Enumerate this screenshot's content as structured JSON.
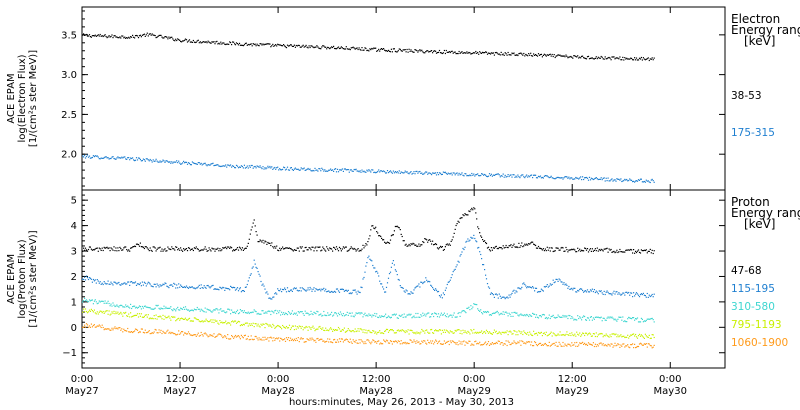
{
  "chart_data": {
    "type": "scatter",
    "xlabel": "hours:minutes, May 26, 2013 - May 30, 2013",
    "x_ticks": [
      {
        "hours": 0,
        "line1": "0:00",
        "line2": "May27"
      },
      {
        "hours": 12,
        "line1": "12:00",
        "line2": "May27"
      },
      {
        "hours": 24,
        "line1": "0:00",
        "line2": "May28"
      },
      {
        "hours": 36,
        "line1": "12:00",
        "line2": "May28"
      },
      {
        "hours": 48,
        "line1": "0:00",
        "line2": "May29"
      },
      {
        "hours": 60,
        "line1": "12:00",
        "line2": "May29"
      },
      {
        "hours": 72,
        "line1": "0:00",
        "line2": "May30"
      }
    ],
    "xlim": [
      0,
      78.7
    ],
    "panels": [
      {
        "id": "electron",
        "ylabel": [
          "ACE EPAM",
          "log(Electron Flux)",
          "[1/(cm²s ster MeV)]"
        ],
        "ylim": [
          1.55,
          3.85
        ],
        "yticks": [
          2.0,
          2.5,
          3.0,
          3.5
        ],
        "ytick_labels": [
          "2.0",
          "2.5",
          "3.0",
          "3.5"
        ],
        "legend_title": [
          "Electron",
          "Energy ranges",
          "[keV]"
        ],
        "series": [
          {
            "name": "38-53",
            "color": "#000000",
            "points": [
              [
                0,
                3.5
              ],
              [
                6,
                3.48
              ],
              [
                8,
                3.51
              ],
              [
                12,
                3.44
              ],
              [
                18,
                3.4
              ],
              [
                24,
                3.37
              ],
              [
                30,
                3.35
              ],
              [
                36,
                3.32
              ],
              [
                42,
                3.3
              ],
              [
                48,
                3.28
              ],
              [
                54,
                3.26
              ],
              [
                60,
                3.23
              ],
              [
                66,
                3.21
              ],
              [
                70,
                3.2
              ]
            ]
          },
          {
            "name": "175-315",
            "color": "#1f7fd0",
            "points": [
              [
                0,
                1.98
              ],
              [
                6,
                1.95
              ],
              [
                12,
                1.9
              ],
              [
                18,
                1.86
              ],
              [
                24,
                1.83
              ],
              [
                30,
                1.81
              ],
              [
                36,
                1.79
              ],
              [
                42,
                1.77
              ],
              [
                48,
                1.75
              ],
              [
                54,
                1.73
              ],
              [
                60,
                1.71
              ],
              [
                66,
                1.68
              ],
              [
                70,
                1.67
              ]
            ]
          }
        ]
      },
      {
        "id": "proton",
        "ylabel": [
          "ACE EPAM",
          "log(Proton Flux)",
          "[1/(cm²s ster MeV)]"
        ],
        "ylim": [
          -1.6,
          5.4
        ],
        "yticks": [
          -1,
          0,
          1,
          2,
          3,
          4,
          5
        ],
        "ytick_labels": [
          "−1",
          "0",
          "1",
          "2",
          "3",
          "4",
          "5"
        ],
        "legend_title": [
          "Proton",
          "Energy ranges",
          "[keV]"
        ],
        "series": [
          {
            "name": "47-68",
            "color": "#000000",
            "points": [
              [
                0,
                3.1
              ],
              [
                6,
                3.1
              ],
              [
                7,
                3.3
              ],
              [
                8,
                3.1
              ],
              [
                18,
                3.1
              ],
              [
                20,
                3.1
              ],
              [
                21,
                4.2
              ],
              [
                21.5,
                3.4
              ],
              [
                23,
                3.3
              ],
              [
                24,
                3.1
              ],
              [
                34,
                3.1
              ],
              [
                35,
                3.4
              ],
              [
                35.5,
                4.1
              ],
              [
                36.5,
                3.5
              ],
              [
                37.5,
                3.3
              ],
              [
                38.5,
                4.1
              ],
              [
                39.5,
                3.3
              ],
              [
                41,
                3.2
              ],
              [
                42,
                3.5
              ],
              [
                44,
                3.1
              ],
              [
                45,
                3.3
              ],
              [
                46,
                4.2
              ],
              [
                47,
                4.5
              ],
              [
                48,
                4.7
              ],
              [
                48.5,
                3.8
              ],
              [
                49.5,
                3.2
              ],
              [
                50,
                3.1
              ],
              [
                55,
                3.3
              ],
              [
                56,
                3.1
              ],
              [
                70,
                3.0
              ]
            ]
          },
          {
            "name": "115-195",
            "color": "#1f7fd0",
            "points": [
              [
                0,
                2.0
              ],
              [
                2,
                1.8
              ],
              [
                6,
                1.75
              ],
              [
                12,
                1.65
              ],
              [
                18,
                1.55
              ],
              [
                20,
                1.5
              ],
              [
                21,
                2.6
              ],
              [
                22,
                1.7
              ],
              [
                23,
                1.1
              ],
              [
                24,
                1.5
              ],
              [
                30,
                1.5
              ],
              [
                34,
                1.4
              ],
              [
                35,
                2.8
              ],
              [
                36,
                2.2
              ],
              [
                37,
                1.4
              ],
              [
                38,
                2.6
              ],
              [
                39,
                1.6
              ],
              [
                40,
                1.3
              ],
              [
                42,
                1.9
              ],
              [
                44,
                1.2
              ],
              [
                46,
                2.6
              ],
              [
                47,
                3.4
              ],
              [
                48,
                3.6
              ],
              [
                49,
                2.5
              ],
              [
                50,
                1.3
              ],
              [
                52,
                1.2
              ],
              [
                54,
                1.7
              ],
              [
                56,
                1.4
              ],
              [
                58,
                1.9
              ],
              [
                60,
                1.5
              ],
              [
                70,
                1.25
              ]
            ]
          },
          {
            "name": "310-580",
            "color": "#3ed6d0",
            "points": [
              [
                0,
                1.1
              ],
              [
                2,
                1.0
              ],
              [
                6,
                0.85
              ],
              [
                12,
                0.75
              ],
              [
                18,
                0.65
              ],
              [
                24,
                0.6
              ],
              [
                30,
                0.55
              ],
              [
                36,
                0.5
              ],
              [
                38,
                0.45
              ],
              [
                42,
                0.5
              ],
              [
                46,
                0.5
              ],
              [
                48,
                0.9
              ],
              [
                49,
                0.6
              ],
              [
                54,
                0.5
              ],
              [
                60,
                0.4
              ],
              [
                70,
                0.3
              ]
            ]
          },
          {
            "name": "795-1193",
            "color": "#c8f000",
            "points": [
              [
                0,
                0.7
              ],
              [
                6,
                0.5
              ],
              [
                12,
                0.35
              ],
              [
                18,
                0.2
              ],
              [
                24,
                0.05
              ],
              [
                30,
                -0.05
              ],
              [
                36,
                -0.15
              ],
              [
                42,
                -0.15
              ],
              [
                48,
                -0.15
              ],
              [
                54,
                -0.2
              ],
              [
                60,
                -0.25
              ],
              [
                70,
                -0.35
              ]
            ]
          },
          {
            "name": "1060-1900",
            "color": "#ff9a1a",
            "points": [
              [
                0,
                0.1
              ],
              [
                6,
                -0.1
              ],
              [
                12,
                -0.2
              ],
              [
                18,
                -0.35
              ],
              [
                24,
                -0.45
              ],
              [
                30,
                -0.5
              ],
              [
                36,
                -0.55
              ],
              [
                42,
                -0.55
              ],
              [
                48,
                -0.6
              ],
              [
                54,
                -0.6
              ],
              [
                60,
                -0.65
              ],
              [
                70,
                -0.7
              ]
            ]
          }
        ]
      }
    ]
  }
}
